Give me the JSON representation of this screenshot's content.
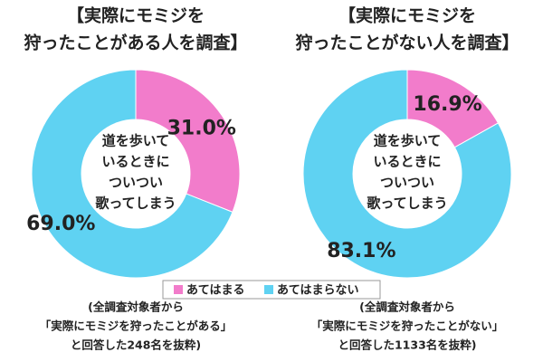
{
  "chart_data": [
    {
      "type": "donut",
      "title": [
        "【実際にモミジを",
        "狩ったことがある人を調査】"
      ],
      "center_text": [
        "道を歩いて",
        "いるときに",
        "ついつい",
        "歌ってしまう"
      ],
      "categories": [
        "あてはまる",
        "あてはまらない"
      ],
      "values": [
        31.0,
        69.0
      ],
      "value_labels": [
        "31.0%",
        "69.0%"
      ],
      "colors": [
        "#f27ccb",
        "#5fd2f2"
      ],
      "note": [
        "(全調査対象者から",
        "「実際にモミジを狩ったことがある」",
        "と回答した248名を抜粋)"
      ]
    },
    {
      "type": "donut",
      "title": [
        "【実際にモミジを",
        "狩ったことがない人を調査】"
      ],
      "center_text": [
        "道を歩いて",
        "いるときに",
        "ついつい",
        "歌ってしまう"
      ],
      "categories": [
        "あてはまる",
        "あてはまらない"
      ],
      "values": [
        16.9,
        83.1
      ],
      "value_labels": [
        "16.9%",
        "83.1%"
      ],
      "colors": [
        "#f27ccb",
        "#5fd2f2"
      ],
      "note": [
        "(全調査対象者から",
        "「実際にモミジを狩ったことがない」",
        "と回答した1133名を抜粋)"
      ]
    }
  ]
}
